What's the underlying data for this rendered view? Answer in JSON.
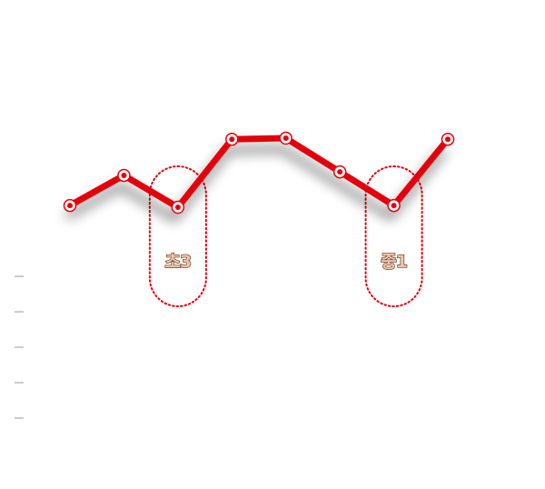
{
  "chart_data": {
    "type": "line",
    "categories": [
      null,
      null,
      null,
      null,
      null,
      null,
      null,
      null
    ],
    "series": [
      {
        "color": "#e3000f",
        "values": [
          6.0,
          6.85,
          5.95,
          7.87,
          7.9,
          6.95,
          6.0,
          7.87
        ]
      }
    ],
    "ylim": [
      0,
      11.8
    ],
    "yticks": [
      0,
      1,
      2,
      3,
      4
    ],
    "annotations": [
      {
        "text": "초3",
        "index": 2
      },
      {
        "text": "중1",
        "index": 6
      }
    ]
  }
}
